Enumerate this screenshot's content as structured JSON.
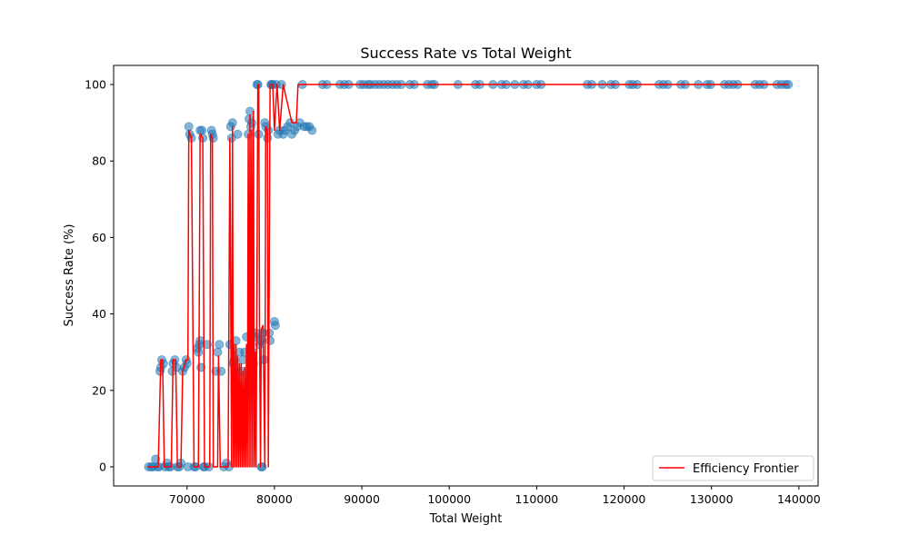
{
  "chart_data": {
    "type": "scatter",
    "title": "Success Rate vs Total Weight",
    "xlabel": "Total Weight",
    "ylabel": "Success Rate (%)",
    "xlim": [
      61600,
      142200
    ],
    "ylim": [
      -5,
      105
    ],
    "xticks": [
      70000,
      80000,
      90000,
      100000,
      110000,
      120000,
      130000,
      140000
    ],
    "yticks": [
      0,
      20,
      40,
      60,
      80,
      100
    ],
    "grid": false,
    "legend_position": "lower right",
    "colors": {
      "scatter": "#1f77b4",
      "frontier": "#ff0000"
    },
    "series": [
      {
        "name": "",
        "kind": "scatter",
        "points": [
          [
            65600,
            0
          ],
          [
            65900,
            0
          ],
          [
            66100,
            0
          ],
          [
            66400,
            2
          ],
          [
            66600,
            0
          ],
          [
            66800,
            0
          ],
          [
            66900,
            25
          ],
          [
            67000,
            26
          ],
          [
            67100,
            28
          ],
          [
            67300,
            27
          ],
          [
            67500,
            0
          ],
          [
            67700,
            1
          ],
          [
            67900,
            0
          ],
          [
            68100,
            0
          ],
          [
            68300,
            25
          ],
          [
            68400,
            27
          ],
          [
            68600,
            28
          ],
          [
            68800,
            26
          ],
          [
            68900,
            0
          ],
          [
            69100,
            0
          ],
          [
            69300,
            1
          ],
          [
            69500,
            25
          ],
          [
            69700,
            26
          ],
          [
            69900,
            28
          ],
          [
            70000,
            27
          ],
          [
            70100,
            0
          ],
          [
            70200,
            89
          ],
          [
            70300,
            87
          ],
          [
            70500,
            86
          ],
          [
            70800,
            0
          ],
          [
            71000,
            0
          ],
          [
            71200,
            31
          ],
          [
            71300,
            30
          ],
          [
            71400,
            32
          ],
          [
            71500,
            33
          ],
          [
            71600,
            26
          ],
          [
            71500,
            88
          ],
          [
            71700,
            88
          ],
          [
            71800,
            86
          ],
          [
            71900,
            0
          ],
          [
            72000,
            0
          ],
          [
            72300,
            32
          ],
          [
            72500,
            0
          ],
          [
            72800,
            88
          ],
          [
            72900,
            87
          ],
          [
            73000,
            86
          ],
          [
            73300,
            25
          ],
          [
            73500,
            30
          ],
          [
            73700,
            32
          ],
          [
            73900,
            25
          ],
          [
            74200,
            0
          ],
          [
            74500,
            1
          ],
          [
            74800,
            0
          ],
          [
            74900,
            32
          ],
          [
            75000,
            89
          ],
          [
            75100,
            86
          ],
          [
            75200,
            90
          ],
          [
            75300,
            27
          ],
          [
            75400,
            28
          ],
          [
            75500,
            25
          ],
          [
            75600,
            33
          ],
          [
            75800,
            87
          ],
          [
            76000,
            30
          ],
          [
            76200,
            25
          ],
          [
            76400,
            28
          ],
          [
            76600,
            30
          ],
          [
            76800,
            34
          ],
          [
            77000,
            87
          ],
          [
            77100,
            91
          ],
          [
            77200,
            93
          ],
          [
            77300,
            89
          ],
          [
            77400,
            90
          ],
          [
            77500,
            30
          ],
          [
            77600,
            27
          ],
          [
            77800,
            34
          ],
          [
            77900,
            35
          ],
          [
            78000,
            100
          ],
          [
            78100,
            100
          ],
          [
            78200,
            87
          ],
          [
            78300,
            32
          ],
          [
            78400,
            33
          ],
          [
            78500,
            0
          ],
          [
            78600,
            0
          ],
          [
            78700,
            35
          ],
          [
            78800,
            28
          ],
          [
            78900,
            90
          ],
          [
            79000,
            89
          ],
          [
            79200,
            86
          ],
          [
            79300,
            88
          ],
          [
            79400,
            35
          ],
          [
            79500,
            33
          ],
          [
            79600,
            100
          ],
          [
            79700,
            100
          ],
          [
            79800,
            100
          ],
          [
            80000,
            38
          ],
          [
            80100,
            37
          ],
          [
            80200,
            100
          ],
          [
            80400,
            87
          ],
          [
            80600,
            88
          ],
          [
            80800,
            100
          ],
          [
            81000,
            87
          ],
          [
            81200,
            88
          ],
          [
            81500,
            89
          ],
          [
            81800,
            90
          ],
          [
            82000,
            87
          ],
          [
            82300,
            88
          ],
          [
            82600,
            89
          ],
          [
            82900,
            90
          ],
          [
            83200,
            100
          ],
          [
            83400,
            89
          ],
          [
            83700,
            89
          ],
          [
            84000,
            89
          ],
          [
            84300,
            88
          ],
          [
            85500,
            100
          ],
          [
            86000,
            100
          ],
          [
            87500,
            100
          ],
          [
            88000,
            100
          ],
          [
            88500,
            100
          ],
          [
            89800,
            100
          ],
          [
            90200,
            100
          ],
          [
            90700,
            100
          ],
          [
            91000,
            100
          ],
          [
            91500,
            100
          ],
          [
            92000,
            100
          ],
          [
            92500,
            100
          ],
          [
            93000,
            100
          ],
          [
            93500,
            100
          ],
          [
            94000,
            100
          ],
          [
            94500,
            100
          ],
          [
            95500,
            100
          ],
          [
            96000,
            100
          ],
          [
            97500,
            100
          ],
          [
            98000,
            100
          ],
          [
            98300,
            100
          ],
          [
            101000,
            100
          ],
          [
            103000,
            100
          ],
          [
            103500,
            100
          ],
          [
            105000,
            100
          ],
          [
            106000,
            100
          ],
          [
            106500,
            100
          ],
          [
            107500,
            100
          ],
          [
            108500,
            100
          ],
          [
            109000,
            100
          ],
          [
            110000,
            100
          ],
          [
            110500,
            100
          ],
          [
            115800,
            100
          ],
          [
            116300,
            100
          ],
          [
            117500,
            100
          ],
          [
            118500,
            100
          ],
          [
            119000,
            100
          ],
          [
            120600,
            100
          ],
          [
            121000,
            100
          ],
          [
            121500,
            100
          ],
          [
            124000,
            100
          ],
          [
            124500,
            100
          ],
          [
            125000,
            100
          ],
          [
            126500,
            100
          ],
          [
            127000,
            100
          ],
          [
            128500,
            100
          ],
          [
            129500,
            100
          ],
          [
            129900,
            100
          ],
          [
            131500,
            100
          ],
          [
            132000,
            100
          ],
          [
            132500,
            100
          ],
          [
            133000,
            100
          ],
          [
            135000,
            100
          ],
          [
            135500,
            100
          ],
          [
            136000,
            100
          ],
          [
            137500,
            100
          ],
          [
            138000,
            100
          ],
          [
            138500,
            100
          ],
          [
            138800,
            100
          ]
        ]
      },
      {
        "name": "Efficiency Frontier",
        "kind": "line",
        "points": [
          [
            65500,
            0
          ],
          [
            66700,
            0
          ],
          [
            67000,
            28
          ],
          [
            67200,
            28
          ],
          [
            67400,
            0
          ],
          [
            68200,
            0
          ],
          [
            68400,
            28
          ],
          [
            68700,
            28
          ],
          [
            68900,
            0
          ],
          [
            69300,
            0
          ],
          [
            69500,
            25
          ],
          [
            69900,
            28
          ],
          [
            70100,
            28
          ],
          [
            70200,
            88
          ],
          [
            70500,
            86
          ],
          [
            70800,
            0
          ],
          [
            71300,
            0
          ],
          [
            71500,
            87
          ],
          [
            71800,
            86
          ],
          [
            72000,
            0
          ],
          [
            72600,
            0
          ],
          [
            72700,
            87
          ],
          [
            72900,
            86
          ],
          [
            73000,
            0
          ],
          [
            73500,
            0
          ],
          [
            73600,
            29
          ],
          [
            73800,
            0
          ],
          [
            74700,
            0
          ],
          [
            74900,
            86
          ],
          [
            75100,
            0
          ],
          [
            75200,
            89
          ],
          [
            75300,
            0
          ],
          [
            75400,
            32
          ],
          [
            75500,
            0
          ],
          [
            75600,
            32
          ],
          [
            75700,
            0
          ],
          [
            75800,
            29
          ],
          [
            75900,
            0
          ],
          [
            76000,
            27
          ],
          [
            76100,
            0
          ],
          [
            76200,
            27
          ],
          [
            76300,
            0
          ],
          [
            76400,
            25
          ],
          [
            76500,
            0
          ],
          [
            76600,
            26
          ],
          [
            76700,
            0
          ],
          [
            76800,
            32
          ],
          [
            76900,
            0
          ],
          [
            77000,
            87
          ],
          [
            77100,
            0
          ],
          [
            77200,
            92
          ],
          [
            77300,
            0
          ],
          [
            77400,
            88
          ],
          [
            77500,
            0
          ],
          [
            77600,
            93
          ],
          [
            77700,
            0
          ],
          [
            77800,
            30
          ],
          [
            77900,
            0
          ],
          [
            78100,
            100
          ],
          [
            78200,
            100
          ],
          [
            78300,
            35
          ],
          [
            78400,
            0
          ],
          [
            78500,
            36
          ],
          [
            78700,
            37
          ],
          [
            78900,
            0
          ],
          [
            79000,
            89
          ],
          [
            79200,
            88
          ],
          [
            79300,
            0
          ],
          [
            79500,
            100
          ],
          [
            79800,
            100
          ],
          [
            80000,
            88
          ],
          [
            80300,
            100
          ],
          [
            80600,
            88
          ],
          [
            81000,
            100
          ],
          [
            82000,
            90
          ],
          [
            82500,
            90
          ],
          [
            82700,
            100
          ],
          [
            88000,
            100
          ],
          [
            95000,
            100
          ],
          [
            110000,
            100
          ],
          [
            120000,
            100
          ],
          [
            130000,
            100
          ],
          [
            138800,
            100
          ]
        ]
      }
    ]
  }
}
